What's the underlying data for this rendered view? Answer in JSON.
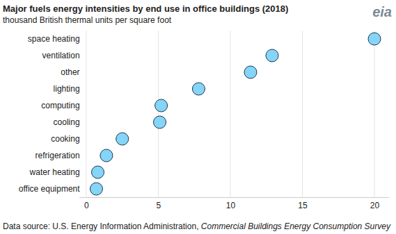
{
  "chart_data": {
    "type": "dot",
    "orientation": "horizontal",
    "title": "Major fuels energy intensities by end use in office buildings (2018)",
    "subtitle": "thousand British thermal units per square foot",
    "source": "Data source: U.S. Energy Information Administration, ",
    "source_publication": "Commercial Buildings Energy Consumption Survey",
    "logo": "eia",
    "categories": [
      "space heating",
      "ventilation",
      "other",
      "lighting",
      "computing",
      "cooling",
      "cooking",
      "refrigeration",
      "water heating",
      "office equipment"
    ],
    "values": [
      20.0,
      12.9,
      11.4,
      7.8,
      5.2,
      5.1,
      2.5,
      1.4,
      0.8,
      0.7
    ],
    "color": "#84d5f7",
    "xlim": [
      -0.5,
      21
    ],
    "xticks": [
      0,
      5,
      10,
      15,
      20
    ],
    "grid": true
  }
}
